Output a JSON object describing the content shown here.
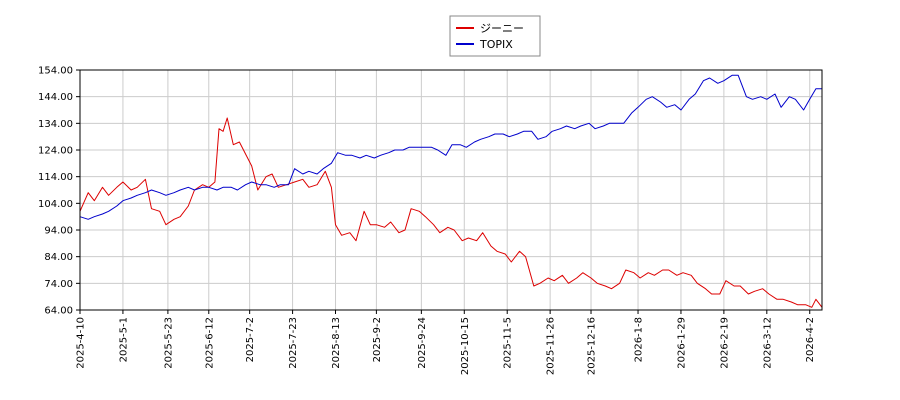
{
  "chart_data": {
    "type": "line",
    "title": "",
    "xlabel": "",
    "ylabel": "",
    "grid": true,
    "legend_position": "top-center",
    "ylim": [
      64.0,
      154.0
    ],
    "y_ticks": [
      "64.00",
      "74.00",
      "84.00",
      "94.00",
      "104.00",
      "114.00",
      "124.00",
      "134.00",
      "144.00",
      "154.00"
    ],
    "x_ticks": [
      "2025-4-10",
      "2025-5-1",
      "2025-5-23",
      "2025-6-12",
      "2025-7-2",
      "2025-7-23",
      "2025-8-13",
      "2025-9-2",
      "2025-9-24",
      "2025-10-15",
      "2025-11-5",
      "2025-11-26",
      "2025-12-16",
      "2026-1-8",
      "2026-1-29",
      "2026-2-19",
      "2026-3-12",
      "2026-4-2"
    ],
    "xlim": [
      "2025-4-10",
      "2026-4-8"
    ],
    "series": [
      {
        "name": "ジーニー",
        "color": "#dd0000",
        "points": [
          [
            "2025-4-10",
            101
          ],
          [
            "2025-4-14",
            108
          ],
          [
            "2025-4-17",
            105
          ],
          [
            "2025-4-21",
            110
          ],
          [
            "2025-4-24",
            107
          ],
          [
            "2025-4-28",
            110
          ],
          [
            "2025-5-1",
            112
          ],
          [
            "2025-5-5",
            109
          ],
          [
            "2025-5-8",
            110
          ],
          [
            "2025-5-12",
            113
          ],
          [
            "2025-5-15",
            102
          ],
          [
            "2025-5-19",
            101
          ],
          [
            "2025-5-22",
            96
          ],
          [
            "2025-5-26",
            98
          ],
          [
            "2025-5-29",
            99
          ],
          [
            "2025-6-2",
            103
          ],
          [
            "2025-6-5",
            109
          ],
          [
            "2025-6-9",
            111
          ],
          [
            "2025-6-12",
            110
          ],
          [
            "2025-6-15",
            112
          ],
          [
            "2025-6-17",
            132
          ],
          [
            "2025-6-19",
            131
          ],
          [
            "2025-6-21",
            136
          ],
          [
            "2025-6-24",
            126
          ],
          [
            "2025-6-27",
            127
          ],
          [
            "2025-7-1",
            121
          ],
          [
            "2025-7-3",
            118
          ],
          [
            "2025-7-6",
            109
          ],
          [
            "2025-7-10",
            114
          ],
          [
            "2025-7-13",
            115
          ],
          [
            "2025-7-16",
            110
          ],
          [
            "2025-7-20",
            111
          ],
          [
            "2025-7-24",
            112
          ],
          [
            "2025-7-28",
            113
          ],
          [
            "2025-7-31",
            110
          ],
          [
            "2025-8-4",
            111
          ],
          [
            "2025-8-8",
            116
          ],
          [
            "2025-8-11",
            110
          ],
          [
            "2025-8-13",
            96
          ],
          [
            "2025-8-16",
            92
          ],
          [
            "2025-8-20",
            93
          ],
          [
            "2025-8-23",
            90
          ],
          [
            "2025-8-27",
            101
          ],
          [
            "2025-8-30",
            96
          ],
          [
            "2025-9-2",
            96
          ],
          [
            "2025-9-6",
            95
          ],
          [
            "2025-9-9",
            97
          ],
          [
            "2025-9-13",
            93
          ],
          [
            "2025-9-16",
            94
          ],
          [
            "2025-9-19",
            102
          ],
          [
            "2025-9-23",
            101
          ],
          [
            "2025-9-26",
            99
          ],
          [
            "2025-9-30",
            96
          ],
          [
            "2025-10-3",
            93
          ],
          [
            "2025-10-7",
            95
          ],
          [
            "2025-10-10",
            94
          ],
          [
            "2025-10-14",
            90
          ],
          [
            "2025-10-17",
            91
          ],
          [
            "2025-10-21",
            90
          ],
          [
            "2025-10-24",
            93
          ],
          [
            "2025-10-28",
            88
          ],
          [
            "2025-10-31",
            86
          ],
          [
            "2025-11-4",
            85
          ],
          [
            "2025-11-7",
            82
          ],
          [
            "2025-11-11",
            86
          ],
          [
            "2025-11-14",
            84
          ],
          [
            "2025-11-18",
            73
          ],
          [
            "2025-11-21",
            74
          ],
          [
            "2025-11-25",
            76
          ],
          [
            "2025-11-28",
            75
          ],
          [
            "2025-12-2",
            77
          ],
          [
            "2025-12-5",
            74
          ],
          [
            "2025-12-9",
            76
          ],
          [
            "2025-12-12",
            78
          ],
          [
            "2025-12-16",
            76
          ],
          [
            "2025-12-19",
            74
          ],
          [
            "2025-12-23",
            73
          ],
          [
            "2025-12-26",
            72
          ],
          [
            "2025-12-30",
            74
          ],
          [
            "2026-1-2",
            79
          ],
          [
            "2026-1-6",
            78
          ],
          [
            "2026-1-9",
            76
          ],
          [
            "2026-1-13",
            78
          ],
          [
            "2026-1-16",
            77
          ],
          [
            "2026-1-20",
            79
          ],
          [
            "2026-1-23",
            79
          ],
          [
            "2026-1-27",
            77
          ],
          [
            "2026-1-30",
            78
          ],
          [
            "2026-2-3",
            77
          ],
          [
            "2026-2-6",
            74
          ],
          [
            "2026-2-10",
            72
          ],
          [
            "2026-2-13",
            70
          ],
          [
            "2026-2-17",
            70
          ],
          [
            "2026-2-20",
            75
          ],
          [
            "2026-2-24",
            73
          ],
          [
            "2026-2-27",
            73
          ],
          [
            "2026-3-3",
            70
          ],
          [
            "2026-3-6",
            71
          ],
          [
            "2026-3-10",
            72
          ],
          [
            "2026-3-13",
            70
          ],
          [
            "2026-3-17",
            68
          ],
          [
            "2026-3-20",
            68
          ],
          [
            "2026-3-24",
            67
          ],
          [
            "2026-3-27",
            66
          ],
          [
            "2026-3-31",
            66
          ],
          [
            "2026-4-3",
            65
          ],
          [
            "2026-4-5",
            68
          ],
          [
            "2026-4-8",
            65
          ]
        ]
      },
      {
        "name": "TOPIX",
        "color": "#0000cc",
        "points": [
          [
            "2025-4-10",
            99
          ],
          [
            "2025-4-14",
            98
          ],
          [
            "2025-4-17",
            99
          ],
          [
            "2025-4-21",
            100
          ],
          [
            "2025-4-24",
            101
          ],
          [
            "2025-4-28",
            103
          ],
          [
            "2025-5-1",
            105
          ],
          [
            "2025-5-5",
            106
          ],
          [
            "2025-5-8",
            107
          ],
          [
            "2025-5-12",
            108
          ],
          [
            "2025-5-15",
            109
          ],
          [
            "2025-5-19",
            108
          ],
          [
            "2025-5-22",
            107
          ],
          [
            "2025-5-26",
            108
          ],
          [
            "2025-5-29",
            109
          ],
          [
            "2025-6-2",
            110
          ],
          [
            "2025-6-5",
            109
          ],
          [
            "2025-6-9",
            110
          ],
          [
            "2025-6-12",
            110
          ],
          [
            "2025-6-16",
            109
          ],
          [
            "2025-6-19",
            110
          ],
          [
            "2025-6-23",
            110
          ],
          [
            "2025-6-26",
            109
          ],
          [
            "2025-6-30",
            111
          ],
          [
            "2025-7-3",
            112
          ],
          [
            "2025-7-7",
            111
          ],
          [
            "2025-7-10",
            111
          ],
          [
            "2025-7-14",
            110
          ],
          [
            "2025-7-17",
            111
          ],
          [
            "2025-7-21",
            111
          ],
          [
            "2025-7-24",
            117
          ],
          [
            "2025-7-28",
            115
          ],
          [
            "2025-7-31",
            116
          ],
          [
            "2025-8-4",
            115
          ],
          [
            "2025-8-7",
            117
          ],
          [
            "2025-8-11",
            119
          ],
          [
            "2025-8-14",
            123
          ],
          [
            "2025-8-18",
            122
          ],
          [
            "2025-8-21",
            122
          ],
          [
            "2025-8-25",
            121
          ],
          [
            "2025-8-28",
            122
          ],
          [
            "2025-9-1",
            121
          ],
          [
            "2025-9-4",
            122
          ],
          [
            "2025-9-8",
            123
          ],
          [
            "2025-9-11",
            124
          ],
          [
            "2025-9-15",
            124
          ],
          [
            "2025-9-18",
            125
          ],
          [
            "2025-9-22",
            125
          ],
          [
            "2025-9-25",
            125
          ],
          [
            "2025-9-29",
            125
          ],
          [
            "2025-10-2",
            124
          ],
          [
            "2025-10-6",
            122
          ],
          [
            "2025-10-9",
            126
          ],
          [
            "2025-10-13",
            126
          ],
          [
            "2025-10-16",
            125
          ],
          [
            "2025-10-20",
            127
          ],
          [
            "2025-10-23",
            128
          ],
          [
            "2025-10-27",
            129
          ],
          [
            "2025-10-30",
            130
          ],
          [
            "2025-11-3",
            130
          ],
          [
            "2025-11-6",
            129
          ],
          [
            "2025-11-10",
            130
          ],
          [
            "2025-11-13",
            131
          ],
          [
            "2025-11-17",
            131
          ],
          [
            "2025-11-20",
            128
          ],
          [
            "2025-11-24",
            129
          ],
          [
            "2025-11-27",
            131
          ],
          [
            "2025-12-1",
            132
          ],
          [
            "2025-12-4",
            133
          ],
          [
            "2025-12-8",
            132
          ],
          [
            "2025-12-11",
            133
          ],
          [
            "2025-12-15",
            134
          ],
          [
            "2025-12-18",
            132
          ],
          [
            "2025-12-22",
            133
          ],
          [
            "2025-12-25",
            134
          ],
          [
            "2025-12-29",
            134
          ],
          [
            "2026-1-1",
            134
          ],
          [
            "2026-1-5",
            138
          ],
          [
            "2026-1-8",
            140
          ],
          [
            "2026-1-12",
            143
          ],
          [
            "2026-1-15",
            144
          ],
          [
            "2026-1-19",
            142
          ],
          [
            "2026-1-22",
            140
          ],
          [
            "2026-1-26",
            141
          ],
          [
            "2026-1-29",
            139
          ],
          [
            "2026-2-2",
            143
          ],
          [
            "2026-2-5",
            145
          ],
          [
            "2026-2-9",
            150
          ],
          [
            "2026-2-12",
            151
          ],
          [
            "2026-2-16",
            149
          ],
          [
            "2026-2-19",
            150
          ],
          [
            "2026-2-23",
            152
          ],
          [
            "2026-2-26",
            152
          ],
          [
            "2026-3-2",
            144
          ],
          [
            "2026-3-5",
            143
          ],
          [
            "2026-3-9",
            144
          ],
          [
            "2026-3-12",
            143
          ],
          [
            "2026-3-16",
            145
          ],
          [
            "2026-3-19",
            140
          ],
          [
            "2026-3-23",
            144
          ],
          [
            "2026-3-26",
            143
          ],
          [
            "2026-3-30",
            139
          ],
          [
            "2026-4-2",
            143
          ],
          [
            "2026-4-5",
            147
          ],
          [
            "2026-4-8",
            147
          ]
        ]
      }
    ]
  }
}
